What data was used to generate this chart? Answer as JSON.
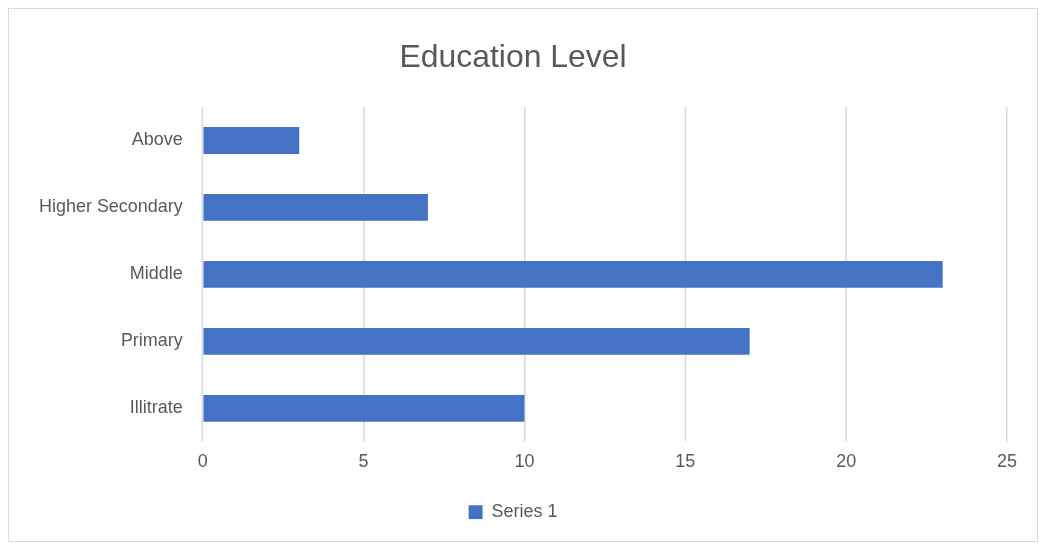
{
  "chart_data": {
    "type": "bar",
    "orientation": "horizontal",
    "title": "Education Level",
    "categories": [
      "Above",
      "Higher Secondary",
      "Middle",
      "Primary",
      "Illitrate"
    ],
    "series": [
      {
        "name": "Series 1",
        "color": "#4472c4",
        "values": [
          3,
          7,
          23,
          17,
          10
        ]
      }
    ],
    "xlim": [
      0,
      25
    ],
    "xticks": [
      0,
      5,
      10,
      15,
      20,
      25
    ],
    "grid": "x",
    "legend": "bottom"
  }
}
